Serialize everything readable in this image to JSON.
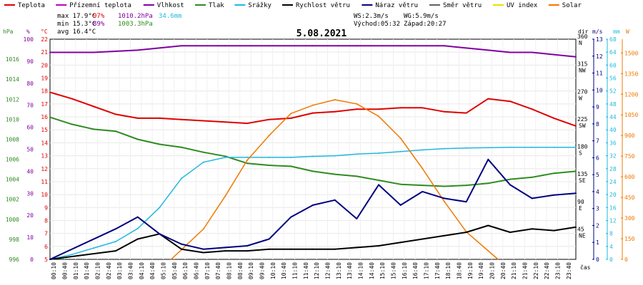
{
  "legend": [
    {
      "label": "Teplota",
      "color": "#e00000"
    },
    {
      "label": "Přízemní teplota",
      "color": "#c000c0"
    },
    {
      "label": "Vlhkost",
      "color": "#8000a0"
    },
    {
      "label": "Tlak",
      "color": "#2e8b20"
    },
    {
      "label": "Srážky",
      "color": "#20b8e0"
    },
    {
      "label": "Rychlost větru",
      "color": "#000000"
    },
    {
      "label": "Náraz větru",
      "color": "#000080"
    },
    {
      "label": "Směr větru",
      "color": "#606060"
    },
    {
      "label": "UV index",
      "color": "#e8e000"
    },
    {
      "label": "Solar",
      "color": "#f07800"
    }
  ],
  "stats": {
    "max_temp": "max 17.9°C",
    "max_hum": "97%",
    "max_press": "1010.2hPa",
    "max_rain": "34.6mm",
    "min_temp": "min 15.3°C",
    "min_hum": "89%",
    "min_press": "1003.3hPa",
    "avg_temp": "avg 16.4°C",
    "ws": "WS:2.3m/s",
    "wg": "WG:5.9m/s",
    "sunrise": "Východ:05:32",
    "sunset": "Západ:20:27"
  },
  "axis_units": {
    "hpa": "hPa",
    "pct": "%",
    "degc": "°C",
    "dir": "dir",
    "ms": "m/s",
    "mm": "mm",
    "w": "W",
    "time": "čas"
  },
  "chart_data": {
    "type": "line",
    "title": "5.08.2021",
    "x_ticks": [
      "00:10",
      "00:40",
      "01:10",
      "01:40",
      "02:10",
      "02:40",
      "03:10",
      "03:40",
      "04:10",
      "04:40",
      "05:10",
      "05:40",
      "06:10",
      "06:40",
      "07:10",
      "07:40",
      "08:10",
      "08:40",
      "09:10",
      "09:40",
      "10:10",
      "10:40",
      "11:10",
      "11:40",
      "12:10",
      "12:40",
      "13:10",
      "13:40",
      "14:10",
      "14:40",
      "15:10",
      "15:40",
      "16:10",
      "16:40",
      "17:10",
      "17:40",
      "18:10",
      "18:40",
      "19:10",
      "19:40",
      "20:10",
      "20:40",
      "21:10",
      "21:40",
      "22:10",
      "22:40",
      "23:10",
      "23:40"
    ],
    "axes": {
      "pressure_hpa": {
        "range": [
          996,
          1018
        ],
        "ticks": [
          "996",
          "998",
          "1000",
          "1002",
          "1004",
          "1006",
          "1008",
          "1010",
          "1012",
          "1014",
          "1016"
        ]
      },
      "humidity_pct": {
        "range": [
          0,
          100
        ],
        "ticks": [
          "0",
          "10",
          "20",
          "30",
          "40",
          "50",
          "60",
          "70",
          "80",
          "90",
          "100"
        ]
      },
      "temperature_c": {
        "range": [
          5,
          22
        ],
        "ticks": [
          "5",
          "6",
          "7",
          "8",
          "9",
          "10",
          "11",
          "12",
          "13",
          "14",
          "15",
          "16",
          "17",
          "18",
          "19",
          "20",
          "21",
          "22"
        ]
      },
      "wind_direction": {
        "ticks": [
          {
            "v": "45",
            "l": "NE"
          },
          {
            "v": "90",
            "l": "E"
          },
          {
            "v": "135",
            "l": "SE"
          },
          {
            "v": "180",
            "l": "S"
          },
          {
            "v": "225",
            "l": "SW"
          },
          {
            "v": "270",
            "l": "W"
          },
          {
            "v": "315",
            "l": "NW"
          },
          {
            "v": "360",
            "l": "N"
          }
        ]
      },
      "wind_speed_ms": {
        "range": [
          0,
          13
        ],
        "ticks": [
          "0",
          "1",
          "2",
          "3",
          "4",
          "5",
          "6",
          "7",
          "8",
          "9",
          "10",
          "11",
          "12",
          "13"
        ]
      },
      "rain_mm": {
        "range": [
          0,
          68
        ],
        "ticks": [
          "0",
          "4",
          "8",
          "12",
          "16",
          "20",
          "24",
          "28",
          "32",
          "36",
          "40",
          "44",
          "48",
          "52",
          "56",
          "60",
          "64",
          "68"
        ]
      },
      "solar_w": {
        "range": [
          0,
          1600
        ],
        "ticks": [
          "0",
          "150",
          "300",
          "450",
          "600",
          "750",
          "900",
          "1050",
          "1200",
          "1350",
          "1500"
        ]
      }
    },
    "series": [
      {
        "name": "Teplota",
        "unit": "°C",
        "x": [
          0,
          1,
          2,
          3,
          4,
          5,
          6,
          7,
          8,
          9,
          10,
          11,
          12,
          13,
          14,
          15,
          16,
          17,
          18,
          19,
          20,
          21,
          22,
          23,
          24
        ],
        "values": [
          17.9,
          17.4,
          16.8,
          16.2,
          15.9,
          15.9,
          15.8,
          15.7,
          15.6,
          15.5,
          15.8,
          15.9,
          16.3,
          16.4,
          16.6,
          16.6,
          16.7,
          16.7,
          16.4,
          16.3,
          17.4,
          17.2,
          16.6,
          15.9,
          15.3
        ]
      },
      {
        "name": "Vlhkost",
        "unit": "%",
        "x": [
          0,
          2,
          4,
          6,
          8,
          10,
          12,
          14,
          16,
          18,
          19,
          20,
          21,
          22,
          23,
          24
        ],
        "values": [
          94,
          94,
          95,
          97,
          97,
          97,
          97,
          97,
          97,
          97,
          96,
          95,
          94,
          94,
          93,
          92
        ]
      },
      {
        "name": "Tlak",
        "unit": "hPa",
        "x": [
          0,
          1,
          2,
          3,
          4,
          5,
          6,
          7,
          8,
          9,
          10,
          11,
          12,
          13,
          14,
          15,
          16,
          17,
          18,
          19,
          20,
          21,
          22,
          23,
          24
        ],
        "values": [
          1010.2,
          1009.5,
          1009.0,
          1008.8,
          1008.0,
          1007.5,
          1007.2,
          1006.7,
          1006.3,
          1005.6,
          1005.4,
          1005.3,
          1004.8,
          1004.5,
          1004.3,
          1003.9,
          1003.5,
          1003.4,
          1003.3,
          1003.4,
          1003.6,
          1004.0,
          1004.2,
          1004.6,
          1004.8
        ]
      },
      {
        "name": "Srážky",
        "unit": "mm",
        "x": [
          0,
          1,
          2,
          3,
          4,
          5,
          6,
          7,
          8,
          9,
          10,
          11,
          12,
          13,
          14,
          15,
          16,
          17,
          18,
          19,
          20,
          21,
          22,
          23,
          24
        ],
        "values": [
          0,
          1.5,
          3.5,
          5.5,
          9.5,
          16,
          25,
          30,
          31.5,
          31.5,
          31.5,
          31.5,
          31.8,
          32,
          32.5,
          32.8,
          33.3,
          33.8,
          34.2,
          34.4,
          34.5,
          34.6,
          34.6,
          34.6,
          34.6
        ]
      },
      {
        "name": "Solar",
        "unit": "W",
        "x": [
          5.53,
          7,
          8,
          9,
          10,
          11,
          12,
          13,
          14,
          15,
          16,
          17,
          18,
          19,
          20.45
        ],
        "values": [
          0,
          220,
          460,
          720,
          900,
          1060,
          1120,
          1160,
          1130,
          1040,
          880,
          660,
          420,
          200,
          0
        ]
      },
      {
        "name": "Rychlost větru",
        "unit": "m/s",
        "x": [
          0,
          3,
          4,
          5,
          6,
          7,
          8,
          9,
          10,
          11,
          12,
          13,
          14,
          15,
          16,
          17,
          18,
          19,
          20,
          21,
          22,
          23,
          24
        ],
        "values": [
          0,
          0.5,
          1.2,
          1.5,
          0.6,
          0.4,
          0.5,
          0.5,
          0.6,
          0.6,
          0.6,
          0.6,
          0.7,
          0.8,
          1,
          1.2,
          1.4,
          1.6,
          2,
          1.6,
          1.8,
          1.7,
          1.9
        ]
      },
      {
        "name": "Náraz větru",
        "unit": "m/s",
        "x": [
          0,
          3,
          4,
          5,
          6,
          7,
          8,
          9,
          10,
          11,
          12,
          13,
          14,
          15,
          16,
          17,
          18,
          19,
          20,
          21,
          22,
          23,
          24
        ],
        "values": [
          0,
          1.8,
          2.5,
          1.5,
          0.9,
          0.6,
          0.7,
          0.8,
          1.2,
          2.5,
          3.2,
          3.5,
          2.4,
          4.4,
          3.2,
          4,
          3.6,
          3.4,
          5.9,
          4.4,
          3.6,
          3.8,
          3.9
        ]
      }
    ]
  }
}
